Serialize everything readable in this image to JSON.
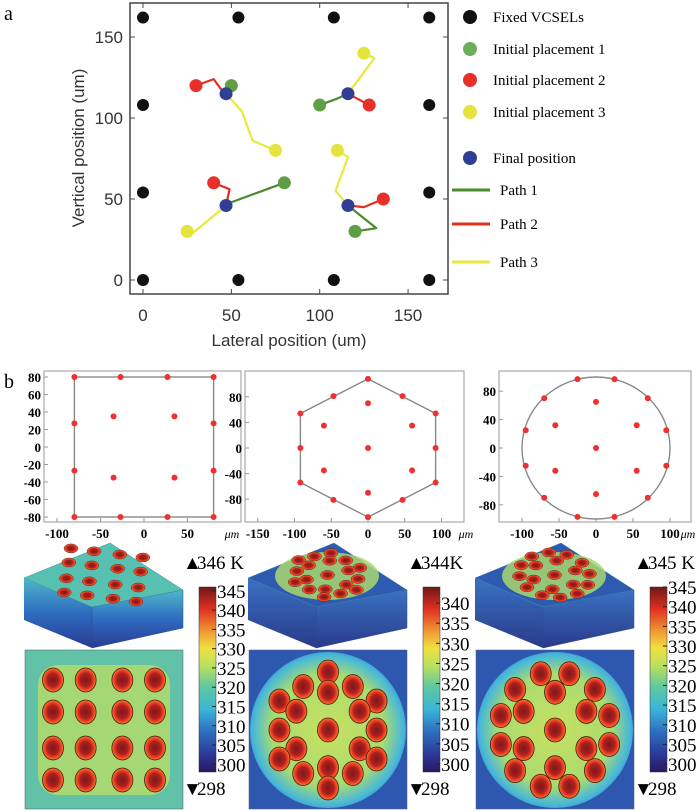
{
  "panel_labels": [
    "a",
    "b"
  ],
  "colors": {
    "fixed": "#111111",
    "initial1": "#5f9e45",
    "initial2": "#e8302a",
    "initial3": "#e4e43c",
    "final": "#2f3f96",
    "path1": "#4a8c2c",
    "path2": "#e03020",
    "path3": "#e8e840",
    "layout_dot": "#f03030",
    "outline": "#888888"
  },
  "chart_data": [
    {
      "id": "a",
      "type": "scatter",
      "xlabel": "Lateral position (um)",
      "ylabel": "Vertical position (um)",
      "xlim": [
        -7,
        173
      ],
      "ylim": [
        -9,
        171
      ],
      "xticks": [
        0,
        50,
        100,
        150
      ],
      "yticks": [
        0,
        50,
        100,
        150
      ],
      "legend_position": "right",
      "legend": [
        {
          "label": "Fixed VCSELs",
          "kind": "marker",
          "color_key": "fixed"
        },
        {
          "label": "Initial placement 1",
          "kind": "marker",
          "color_key": "initial1"
        },
        {
          "label": "Initial placement 2",
          "kind": "marker",
          "color_key": "initial2"
        },
        {
          "label": "Initial placement 3",
          "kind": "marker",
          "color_key": "initial3"
        },
        {
          "label": "Final position",
          "kind": "marker",
          "color_key": "final"
        },
        {
          "label": "Path 1",
          "kind": "line",
          "color_key": "path1"
        },
        {
          "label": "Path 2",
          "kind": "line",
          "color_key": "path2"
        },
        {
          "label": "Path 3",
          "kind": "line",
          "color_key": "path3"
        }
      ],
      "fixed_vcsels": [
        [
          0,
          162
        ],
        [
          54,
          162
        ],
        [
          108,
          162
        ],
        [
          162,
          162
        ],
        [
          0,
          108
        ],
        [
          162,
          108
        ],
        [
          0,
          54
        ],
        [
          162,
          54
        ],
        [
          0,
          0
        ],
        [
          54,
          0
        ],
        [
          108,
          0
        ],
        [
          162,
          0
        ]
      ],
      "groups": [
        {
          "final": [
            47,
            115
          ],
          "initial1": [
            50,
            120
          ],
          "initial2": [
            30,
            120
          ],
          "initial3": [
            75,
            80
          ],
          "path1": [
            [
              50,
              120
            ],
            [
              47,
              115
            ]
          ],
          "path2": [
            [
              30,
              120
            ],
            [
              40,
              124
            ],
            [
              44,
              118
            ],
            [
              47,
              115
            ]
          ],
          "path3": [
            [
              75,
              80
            ],
            [
              62,
              86
            ],
            [
              56,
              104
            ],
            [
              47,
              115
            ]
          ]
        },
        {
          "final": [
            116,
            115
          ],
          "initial1": [
            100,
            108
          ],
          "initial2": [
            128,
            108
          ],
          "initial3": [
            125,
            140
          ],
          "path1": [
            [
              100,
              108
            ],
            [
              110,
              112
            ],
            [
              116,
              115
            ]
          ],
          "path2": [
            [
              128,
              108
            ],
            [
              116,
              115
            ]
          ],
          "path3": [
            [
              125,
              140
            ],
            [
              131,
              137
            ],
            [
              116,
              115
            ]
          ]
        },
        {
          "final": [
            47,
            46
          ],
          "initial1": [
            80,
            60
          ],
          "initial2": [
            40,
            60
          ],
          "initial3": [
            25,
            30
          ],
          "path1": [
            [
              80,
              60
            ],
            [
              50,
              48
            ],
            [
              47,
              46
            ]
          ],
          "path2": [
            [
              40,
              60
            ],
            [
              49,
              56
            ],
            [
              47,
              46
            ]
          ],
          "path3": [
            [
              25,
              30
            ],
            [
              26,
              27
            ],
            [
              47,
              46
            ]
          ]
        },
        {
          "final": [
            116,
            46
          ],
          "initial1": [
            120,
            30
          ],
          "initial2": [
            136,
            50
          ],
          "initial3": [
            110,
            80
          ],
          "path1": [
            [
              120,
              30
            ],
            [
              132,
              32
            ],
            [
              116,
              46
            ]
          ],
          "path2": [
            [
              136,
              50
            ],
            [
              125,
              45
            ],
            [
              116,
              46
            ]
          ],
          "path3": [
            [
              110,
              80
            ],
            [
              116,
              76
            ],
            [
              109,
              55
            ],
            [
              116,
              46
            ]
          ]
        }
      ]
    },
    {
      "id": "b-square",
      "type": "scatter",
      "xticks": [
        -100,
        -50,
        0,
        50
      ],
      "yticks": [
        80,
        60,
        40,
        20,
        0,
        -20,
        -40,
        -60,
        -80
      ],
      "unit": "μm",
      "outline": {
        "shape": "rect",
        "half_width": 80,
        "half_height": 80
      },
      "points": [
        [
          -80,
          80
        ],
        [
          -27,
          80
        ],
        [
          27,
          80
        ],
        [
          80,
          80
        ],
        [
          -80,
          27
        ],
        [
          80,
          27
        ],
        [
          -35,
          35
        ],
        [
          35,
          35
        ],
        [
          -35,
          -35
        ],
        [
          35,
          -35
        ],
        [
          -80,
          -27
        ],
        [
          80,
          -27
        ],
        [
          -80,
          -80
        ],
        [
          -27,
          -80
        ],
        [
          27,
          -80
        ],
        [
          80,
          -80
        ]
      ]
    },
    {
      "id": "b-hexagon",
      "type": "scatter",
      "xticks": [
        -150,
        -100,
        -50,
        0,
        50,
        100
      ],
      "yticks": [
        80,
        40,
        0,
        -40,
        -80
      ],
      "unit": "μm",
      "outline": {
        "shape": "polygon",
        "vertices": [
          [
            0,
            108
          ],
          [
            92,
            54
          ],
          [
            92,
            -54
          ],
          [
            0,
            -108
          ],
          [
            -92,
            -54
          ],
          [
            -92,
            54
          ]
        ]
      },
      "points": [
        [
          0,
          108
        ],
        [
          -47,
          81
        ],
        [
          47,
          81
        ],
        [
          0,
          70
        ],
        [
          -92,
          54
        ],
        [
          92,
          54
        ],
        [
          -60,
          35
        ],
        [
          60,
          35
        ],
        [
          -92,
          0
        ],
        [
          0,
          0
        ],
        [
          92,
          0
        ],
        [
          -60,
          -35
        ],
        [
          60,
          -35
        ],
        [
          -92,
          -54
        ],
        [
          92,
          -54
        ],
        [
          0,
          -70
        ],
        [
          -47,
          -81
        ],
        [
          47,
          -81
        ],
        [
          0,
          -108
        ]
      ]
    },
    {
      "id": "b-circle",
      "type": "scatter",
      "xticks": [
        -100,
        -50,
        0,
        50,
        100
      ],
      "yticks": [
        80,
        40,
        0,
        -40,
        -80
      ],
      "unit": "μm",
      "outline": {
        "shape": "circle",
        "radius": 100
      },
      "points": [
        [
          -25,
          97
        ],
        [
          25,
          97
        ],
        [
          -70,
          70
        ],
        [
          70,
          70
        ],
        [
          0,
          65
        ],
        [
          -95,
          25
        ],
        [
          95,
          25
        ],
        [
          -55,
          32
        ],
        [
          55,
          32
        ],
        [
          0,
          0
        ],
        [
          -95,
          -25
        ],
        [
          95,
          -25
        ],
        [
          -55,
          -32
        ],
        [
          55,
          -32
        ],
        [
          0,
          -65
        ],
        [
          -70,
          -70
        ],
        [
          70,
          -70
        ],
        [
          -25,
          -97
        ],
        [
          25,
          -97
        ]
      ]
    }
  ],
  "thermal_maps": [
    {
      "layout": "square",
      "max_label": "346 K",
      "min_label": "298",
      "colorbar_ticks": [
        345,
        340,
        335,
        330,
        325,
        320,
        315,
        310,
        305,
        300
      ],
      "colorbar_range": [
        298,
        346
      ]
    },
    {
      "layout": "hexagon",
      "max_label": "344K",
      "min_label": "298",
      "colorbar_ticks": [
        340,
        335,
        330,
        325,
        320,
        315,
        310,
        305,
        300
      ],
      "colorbar_range": [
        298,
        344
      ]
    },
    {
      "layout": "circle",
      "max_label": "345 K",
      "min_label": "298",
      "colorbar_ticks": [
        345,
        340,
        335,
        330,
        325,
        320,
        315,
        310,
        305,
        300
      ],
      "colorbar_range": [
        298,
        345
      ]
    }
  ]
}
